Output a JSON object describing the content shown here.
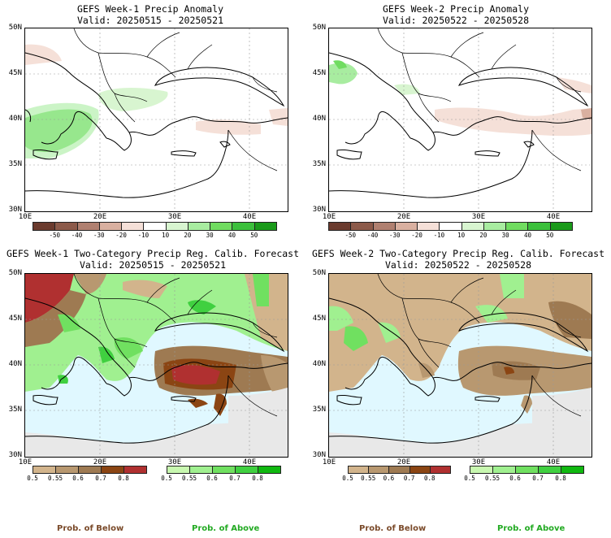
{
  "panels": [
    {
      "id": "p1",
      "title": "GEFS Week-1 Precip Anomaly",
      "valid": "Valid: 20250515 - 20250521"
    },
    {
      "id": "p2",
      "title": "GEFS Week-2 Precip Anomaly",
      "valid": "Valid: 20250522 - 20250528"
    },
    {
      "id": "p3",
      "title": "GEFS Week-1 Two-Category Precip Reg. Calib. Forecast",
      "valid": "Valid: 20250515 - 20250521"
    },
    {
      "id": "p4",
      "title": "GEFS Week-2 Two-Category Precip Reg. Calib. Forecast",
      "valid": "Valid: 20250522 - 20250528"
    }
  ],
  "lat_labels": [
    "50N",
    "45N",
    "40N",
    "35N",
    "30N"
  ],
  "lon_labels": [
    "10E",
    "20E",
    "30E",
    "40E"
  ],
  "anomaly_colorbar": {
    "ticks": [
      "-50",
      "-40",
      "-30",
      "-20",
      "-10",
      "10",
      "20",
      "30",
      "40",
      "50"
    ],
    "colors": [
      "#6b3b2e",
      "#8c5a4a",
      "#b08070",
      "#d9b0a0",
      "#f5e0d8",
      "#ffffff",
      "#d8f5d0",
      "#a8eca0",
      "#70dc60",
      "#3cc03c",
      "#1a9a1a"
    ]
  },
  "below_colorbar": {
    "ticks": [
      "0.5",
      "0.55",
      "0.6",
      "0.7",
      "0.8"
    ],
    "colors": [
      "#d2b48c",
      "#b89870",
      "#9e7a52",
      "#8b4513",
      "#b03030"
    ]
  },
  "above_colorbar": {
    "ticks": [
      "0.5",
      "0.55",
      "0.6",
      "0.7",
      "0.8"
    ],
    "colors": [
      "#c8f8b0",
      "#a0f090",
      "#70e060",
      "#40d040",
      "#10b810"
    ]
  },
  "legend": {
    "below": "Prob. of Below",
    "above": "Prob. of Above"
  },
  "colors": {
    "below_text": "#7a4a2a",
    "above_text": "#22aa22",
    "sea": "#e0f8ff",
    "land_na": "#e8e8e8"
  }
}
